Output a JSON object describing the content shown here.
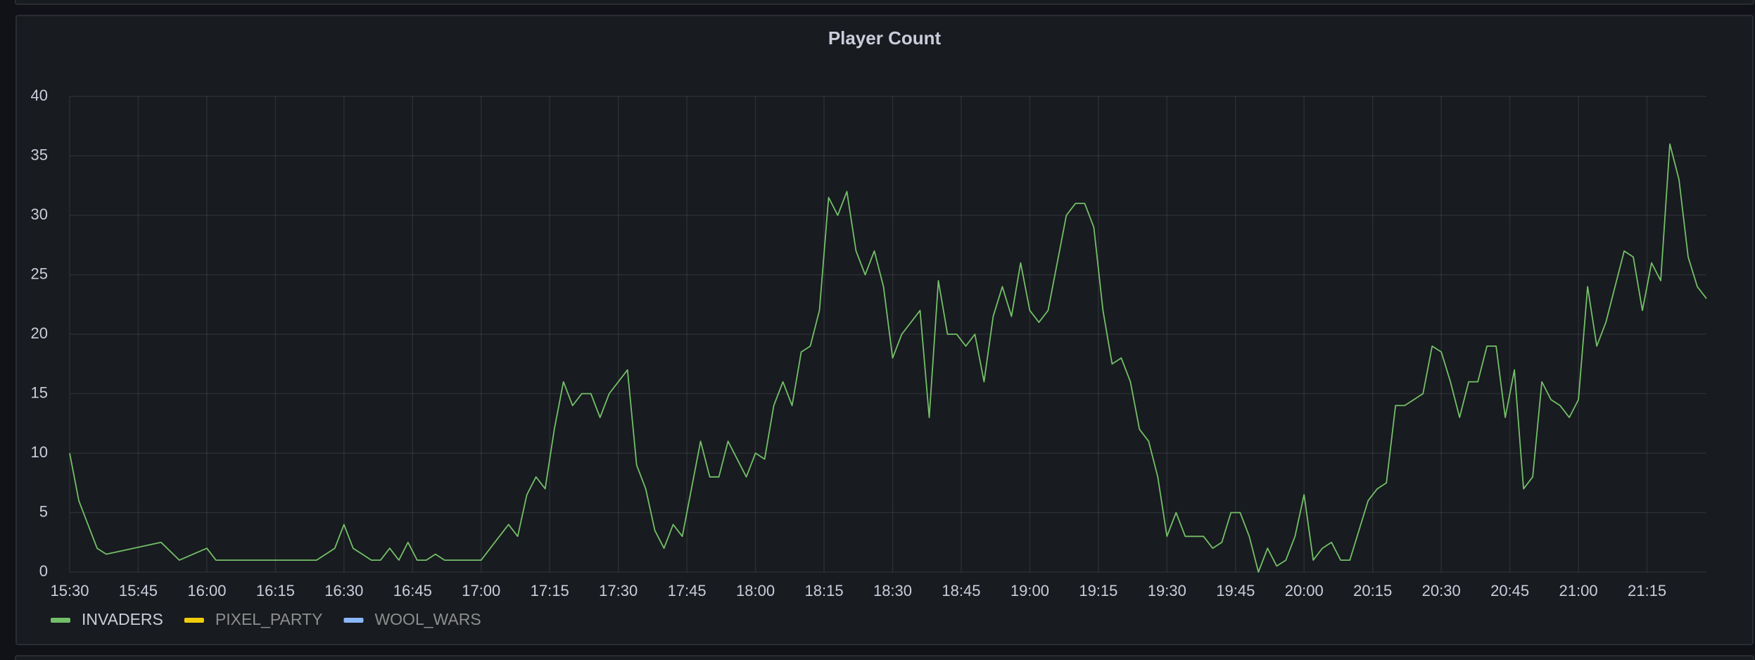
{
  "chart_data": {
    "type": "line",
    "title": "Player Count",
    "xlim": [
      "15:30",
      "21:28"
    ],
    "xticks": [
      "15:30",
      "15:45",
      "16:00",
      "16:15",
      "16:30",
      "16:45",
      "17:00",
      "17:15",
      "17:30",
      "17:45",
      "18:00",
      "18:15",
      "18:30",
      "18:45",
      "19:00",
      "19:15",
      "19:30",
      "19:45",
      "20:00",
      "20:15",
      "20:30",
      "20:45",
      "21:00",
      "21:15"
    ],
    "ylim": [
      0,
      40
    ],
    "yticks": [
      0,
      5,
      10,
      15,
      20,
      25,
      30,
      35,
      40
    ],
    "grid": true,
    "legend": "bottom-left",
    "series": [
      {
        "name": "INVADERS",
        "color": "#73bf69",
        "x": [
          "15:30",
          "15:32",
          "15:36",
          "15:38",
          "15:50",
          "15:54",
          "16:00",
          "16:02",
          "16:24",
          "16:28",
          "16:30",
          "16:32",
          "16:36",
          "16:38",
          "16:40",
          "16:42",
          "16:44",
          "16:46",
          "16:48",
          "16:50",
          "16:52",
          "17:00",
          "17:06",
          "17:08",
          "17:10",
          "17:12",
          "17:14",
          "17:16",
          "17:18",
          "17:20",
          "17:22",
          "17:24",
          "17:26",
          "17:28",
          "17:32",
          "17:34",
          "17:36",
          "17:38",
          "17:40",
          "17:42",
          "17:44",
          "17:48",
          "17:50",
          "17:52",
          "17:54",
          "17:58",
          "18:00",
          "18:02",
          "18:04",
          "18:06",
          "18:08",
          "18:10",
          "18:12",
          "18:14",
          "18:16",
          "18:18",
          "18:20",
          "18:22",
          "18:24",
          "18:26",
          "18:28",
          "18:30",
          "18:32",
          "18:36",
          "18:38",
          "18:40",
          "18:42",
          "18:44",
          "18:46",
          "18:48",
          "18:50",
          "18:52",
          "18:54",
          "18:56",
          "18:58",
          "19:00",
          "19:02",
          "19:04",
          "19:08",
          "19:10",
          "19:12",
          "19:14",
          "19:16",
          "19:18",
          "19:20",
          "19:22",
          "19:24",
          "19:26",
          "19:28",
          "19:30",
          "19:32",
          "19:34",
          "19:38",
          "19:40",
          "19:42",
          "19:44",
          "19:46",
          "19:48",
          "19:50",
          "19:52",
          "19:54",
          "19:56",
          "19:58",
          "20:00",
          "20:02",
          "20:04",
          "20:06",
          "20:08",
          "20:10",
          "20:14",
          "20:16",
          "20:18",
          "20:20",
          "20:22",
          "20:26",
          "20:28",
          "20:30",
          "20:32",
          "20:34",
          "20:36",
          "20:38",
          "20:40",
          "20:42",
          "20:44",
          "20:46",
          "20:48",
          "20:50",
          "20:52",
          "20:54",
          "20:56",
          "20:58",
          "21:00",
          "21:02",
          "21:04",
          "21:06",
          "21:10",
          "21:12",
          "21:14",
          "21:16",
          "21:18",
          "21:20",
          "21:22",
          "21:24",
          "21:26",
          "21:28"
        ],
        "values": [
          10,
          6,
          2,
          1.5,
          2.5,
          1,
          2,
          1,
          1,
          2,
          4,
          2,
          1,
          1,
          2,
          1,
          2.5,
          1,
          1,
          1.5,
          1,
          1,
          4,
          3,
          6.5,
          8,
          7,
          12,
          16,
          14,
          15,
          15,
          13,
          15,
          17,
          9,
          7,
          3.5,
          2,
          4,
          3,
          11,
          8,
          8,
          11,
          8,
          10,
          9.5,
          14,
          16,
          14,
          18.5,
          19,
          22,
          31.5,
          30,
          32,
          27,
          25,
          27,
          24,
          18,
          20,
          22,
          13,
          24.5,
          20,
          20,
          19,
          20,
          16,
          21.5,
          24,
          21.5,
          26,
          22,
          21,
          22,
          30,
          31,
          31,
          29,
          22,
          17.5,
          18,
          16,
          12,
          11,
          8,
          3,
          5,
          3,
          3,
          2,
          2.5,
          5,
          5,
          3,
          0,
          2,
          0.5,
          1,
          3,
          6.5,
          1,
          2,
          2.5,
          1,
          1,
          6,
          7,
          7.5,
          14,
          14,
          15,
          19,
          18.5,
          16,
          13,
          16,
          16,
          19,
          19,
          13,
          17,
          7,
          8,
          16,
          14.5,
          14,
          13,
          14.5,
          24,
          19,
          21,
          27,
          26.5,
          22,
          26,
          24.5,
          36,
          33,
          26.5,
          24,
          23
        ]
      },
      {
        "name": "PIXEL_PARTY",
        "color": "#f2cc0c",
        "x": [],
        "values": []
      },
      {
        "name": "WOOL_WARS",
        "color": "#8ab8ff",
        "x": [],
        "values": []
      }
    ]
  }
}
